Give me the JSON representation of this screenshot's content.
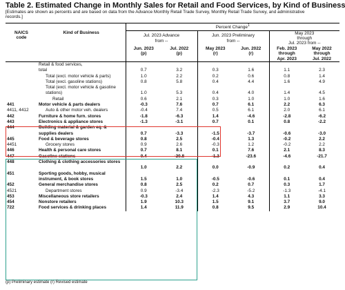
{
  "title": "Table 2.  Estimated Change in Monthly Sales for Retail and Food Services, by Kind of Business",
  "subtitle": "[Estimates are shown as percents and are based on data from the Advance Monthly Retail Trade Survey,  Monthly Retail Trade Survey, and administrative records.]",
  "header": {
    "percent_change": "Percent Change",
    "percent_change_sup": "1",
    "naics": "NAICS\ncode",
    "kind": "Kind of Business",
    "group1": "Jul. 2023 Advance\nfrom --",
    "group2": "Jun. 2023 Preliminary\nfrom --",
    "group3": "May 2023\nthrough\nJul. 2023 from --",
    "cols": [
      "Jun. 2023\n(p)",
      "Jul. 2022\n(p)",
      "May 2023\n(r)",
      "Jun. 2022\n(r)",
      "Feb. 2023\nthrough\nApr. 2023",
      "May 2022\nthrough\nJul. 2022"
    ]
  },
  "rows": [
    {
      "naics": "",
      "kind": "Retail & food services,",
      "vals": [
        "",
        "",
        "",
        "",
        "",
        ""
      ],
      "style": "plain"
    },
    {
      "naics": "",
      "kind": "total",
      "vals": [
        "0.7",
        "3.2",
        "0.3",
        "1.6",
        "1.1",
        "2.3"
      ],
      "style": "plain"
    },
    {
      "naics": "",
      "kind": "Total (excl. motor vehicle & parts)",
      "vals": [
        "1.0",
        "2.2",
        "0.2",
        "0.6",
        "0.8",
        "1.4"
      ],
      "style": "indent"
    },
    {
      "naics": "",
      "kind": "Total (excl. gasoline stations)",
      "vals": [
        "0.8",
        "5.8",
        "0.4",
        "4.4",
        "1.6",
        "4.9"
      ],
      "style": "indent"
    },
    {
      "naics": "",
      "kind": "Total (excl. motor vehicle & gasoline stations)",
      "vals": [
        "1.0",
        "5.3",
        "0.4",
        "4.0",
        "1.4",
        "4.5"
      ],
      "style": "indent",
      "wrap": true
    },
    {
      "naics": "",
      "kind": "Retail",
      "vals": [
        "0.6",
        "2.1",
        "0.3",
        "1.0",
        "1.0",
        "1.6"
      ],
      "style": "indent2"
    },
    {
      "naics": "441",
      "kind": "Motor vehicle & parts dealers",
      "vals": [
        "-0.3",
        "7.6",
        "0.7",
        "6.1",
        "2.2",
        "6.3"
      ],
      "style": "bold"
    },
    {
      "naics": "4411, 4412",
      "kind": "Auto & other motor veh. dealers",
      "vals": [
        "-0.4",
        "7.4",
        "0.5",
        "6.1",
        "2.0",
        "6.1"
      ],
      "style": "indent"
    },
    {
      "naics": "442",
      "kind": "Furniture & home furn. stores",
      "vals": [
        "-1.8",
        "-6.3",
        "1.4",
        "-4.6",
        "-2.8",
        "-6.2"
      ],
      "style": "bold"
    },
    {
      "naics": "443",
      "kind": "Electronics & appliance stores",
      "vals": [
        "-1.3",
        "-3.1",
        "0.7",
        "0.1",
        "0.8",
        "-2.2"
      ],
      "style": "bold"
    },
    {
      "naics": "444",
      "kind": "Building material & garden eq. & supplies dealers",
      "vals": [
        "0.7",
        "-3.3",
        "-1.5",
        "-3.7",
        "-0.6",
        "-3.0"
      ],
      "style": "bold",
      "wrap": true
    },
    {
      "naics": "445",
      "kind": "Food & beverage stores",
      "vals": [
        "0.8",
        "2.5",
        "-0.4",
        "1.3",
        "-0.2",
        "2.2"
      ],
      "style": "bold"
    },
    {
      "naics": "4451",
      "kind": "Grocery stores",
      "vals": [
        "0.9",
        "2.6",
        "-0.3",
        "1.2",
        "-0.2",
        "2.2"
      ],
      "style": "indent"
    },
    {
      "naics": "446",
      "kind": "Health & personal care stores",
      "vals": [
        "0.7",
        "8.1",
        "0.1",
        "7.6",
        "2.1",
        "8.3"
      ],
      "style": "bold"
    },
    {
      "naics": "447",
      "kind": "Gasoline stations",
      "vals": [
        "0.4",
        "-20.8",
        "-1.3",
        "-23.6",
        "-4.6",
        "-21.7"
      ],
      "style": "bold"
    },
    {
      "naics": "448",
      "kind": "Clothing & clothing accessories stores",
      "vals": [
        "1.0",
        "2.2",
        "0.0",
        "-0.9",
        "0.2",
        "0.4"
      ],
      "style": "bold",
      "wrap": true
    },
    {
      "naics": "451",
      "kind": "Sporting goods, hobby, musical instrument, & book stores",
      "vals": [
        "1.5",
        "1.0",
        "-0.5",
        "-0.6",
        "0.1",
        "0.4"
      ],
      "style": "bold",
      "wrap": true
    },
    {
      "naics": "452",
      "kind": "General merchandise stores",
      "vals": [
        "0.8",
        "2.5",
        "0.2",
        "0.7",
        "0.3",
        "1.7"
      ],
      "style": "bold"
    },
    {
      "naics": "4521",
      "kind": "Department stores",
      "vals": [
        "0.9",
        "-3.4",
        "-2.3",
        "-5.2",
        "-1.3",
        "-4.1"
      ],
      "style": "indent"
    },
    {
      "naics": "453",
      "kind": "Miscellaneous store retailers",
      "vals": [
        "-0.3",
        "2.4",
        "1.4",
        "4.3",
        "1.1",
        "3.3"
      ],
      "style": "bold"
    },
    {
      "naics": "454",
      "kind": "Nonstore retailers",
      "vals": [
        "1.9",
        "10.3",
        "1.5",
        "9.1",
        "3.7",
        "9.0"
      ],
      "style": "bold"
    },
    {
      "naics": "722",
      "kind": "Food services & drinking places",
      "vals": [
        "1.4",
        "11.9",
        "0.8",
        "9.5",
        "2.9",
        "10.4"
      ],
      "style": "bold"
    }
  ],
  "footnote": "(p)  Preliminary estimate     (r)  Revised estimate",
  "colors": {
    "red_box": "#e0342c",
    "teal_box": "#2ba08c"
  }
}
